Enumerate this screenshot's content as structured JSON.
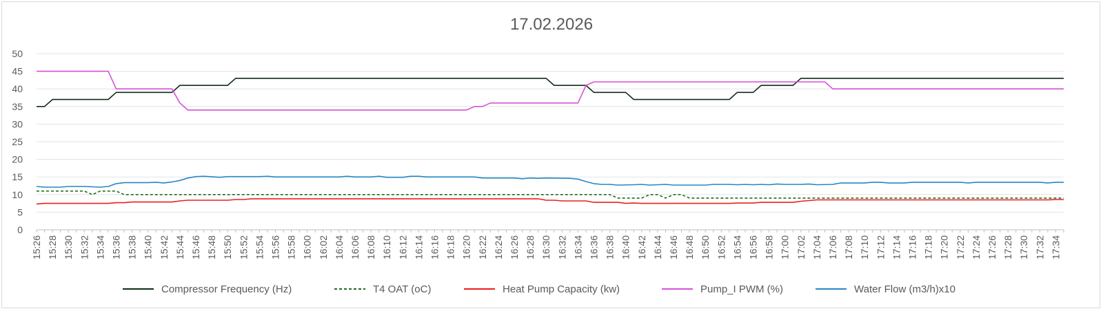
{
  "chart_data": {
    "type": "line",
    "title": "17.02.2026",
    "ylim": [
      0,
      50
    ],
    "yticks": [
      0,
      5,
      10,
      15,
      20,
      25,
      30,
      35,
      40,
      45,
      50
    ],
    "grid": true,
    "legend_position": "bottom",
    "x_start_minute": 926,
    "x_end_minute": 1055,
    "x_labels": [
      "15:26",
      "15:28",
      "15:30",
      "15:32",
      "15:34",
      "15:36",
      "15:38",
      "15:40",
      "15:42",
      "15:44",
      "15:46",
      "15:48",
      "15:50",
      "15:52",
      "15:54",
      "15:56",
      "15:58",
      "16:00",
      "16:02",
      "16:04",
      "16:06",
      "16:08",
      "16:10",
      "16:12",
      "16:14",
      "16:16",
      "16:18",
      "16:20",
      "16:22",
      "16:24",
      "16:26",
      "16:28",
      "16:30",
      "16:32",
      "16:34",
      "16:36",
      "16:38",
      "16:40",
      "16:42",
      "16:44",
      "16:46",
      "16:48",
      "16:50",
      "16:52",
      "16:54",
      "16:56",
      "16:58",
      "17:00",
      "17:02",
      "17:04",
      "17:06",
      "17:08",
      "17:10",
      "17:12",
      "17:14",
      "17:16",
      "17:18",
      "17:20",
      "17:22",
      "17:24",
      "17:26",
      "17:28",
      "17:30",
      "17:32",
      "17:34"
    ],
    "series": [
      {
        "name": "Compressor Frequency (Hz)",
        "color": "#0d2b14",
        "dash": "solid",
        "points": [
          [
            926,
            35
          ],
          [
            927,
            35
          ],
          [
            928,
            37
          ],
          [
            935,
            37
          ],
          [
            936,
            39
          ],
          [
            943,
            39
          ],
          [
            944,
            41
          ],
          [
            950,
            41
          ],
          [
            951,
            43
          ],
          [
            990,
            43
          ],
          [
            991,
            41
          ],
          [
            995,
            41
          ],
          [
            996,
            39
          ],
          [
            1000,
            39
          ],
          [
            1001,
            37
          ],
          [
            1013,
            37
          ],
          [
            1014,
            39
          ],
          [
            1016,
            39
          ],
          [
            1017,
            41
          ],
          [
            1021,
            41
          ],
          [
            1022,
            43
          ],
          [
            1055,
            43
          ]
        ]
      },
      {
        "name": "T4 OAT (oC)",
        "color": "#1e6b1e",
        "dash": "dashed",
        "points": [
          [
            926,
            11
          ],
          [
            932,
            11
          ],
          [
            933,
            10
          ],
          [
            934,
            11
          ],
          [
            936,
            11
          ],
          [
            937,
            10
          ],
          [
            998,
            10
          ],
          [
            999,
            9
          ],
          [
            1002,
            9
          ],
          [
            1003,
            10
          ],
          [
            1004,
            10
          ],
          [
            1005,
            9
          ],
          [
            1006,
            10
          ],
          [
            1007,
            10
          ],
          [
            1008,
            9
          ],
          [
            1055,
            9
          ]
        ]
      },
      {
        "name": "Heat Pump Capacity (kw)",
        "color": "#ee1c1c",
        "dash": "solid",
        "points": [
          [
            926,
            7.3
          ],
          [
            927,
            7.5
          ],
          [
            935,
            7.5
          ],
          [
            936,
            7.7
          ],
          [
            937,
            7.7
          ],
          [
            938,
            7.9
          ],
          [
            943,
            7.9
          ],
          [
            944,
            8.2
          ],
          [
            945,
            8.4
          ],
          [
            950,
            8.4
          ],
          [
            951,
            8.6
          ],
          [
            952,
            8.6
          ],
          [
            953,
            8.8
          ],
          [
            989,
            8.8
          ],
          [
            990,
            8.4
          ],
          [
            991,
            8.4
          ],
          [
            992,
            8.2
          ],
          [
            995,
            8.2
          ],
          [
            996,
            7.8
          ],
          [
            999,
            7.8
          ],
          [
            1000,
            7.5
          ],
          [
            1001,
            7.6
          ],
          [
            1002,
            7.5
          ],
          [
            1013,
            7.5
          ],
          [
            1014,
            7.6
          ],
          [
            1016,
            7.6
          ],
          [
            1017,
            7.8
          ],
          [
            1021,
            7.8
          ],
          [
            1022,
            8.1
          ],
          [
            1023,
            8.3
          ],
          [
            1024,
            8.5
          ],
          [
            1053,
            8.5
          ],
          [
            1054,
            8.6
          ],
          [
            1055,
            8.6
          ]
        ]
      },
      {
        "name": "Pump_I PWM (%)",
        "color": "#d74fd7",
        "dash": "solid",
        "points": [
          [
            926,
            45
          ],
          [
            935,
            45
          ],
          [
            936,
            40
          ],
          [
            943,
            40
          ],
          [
            944,
            36
          ],
          [
            945,
            34
          ],
          [
            980,
            34
          ],
          [
            981,
            35
          ],
          [
            982,
            35
          ],
          [
            983,
            36
          ],
          [
            994,
            36
          ],
          [
            995,
            41
          ],
          [
            996,
            42
          ],
          [
            1025,
            42
          ],
          [
            1026,
            40
          ],
          [
            1055,
            40
          ]
        ]
      },
      {
        "name": "Water Flow (m3/h)x10",
        "color": "#2586c6",
        "dash": "solid",
        "points": [
          [
            926,
            12.3
          ],
          [
            927,
            12.1
          ],
          [
            929,
            12.1
          ],
          [
            930,
            12.3
          ],
          [
            932,
            12.3
          ],
          [
            933,
            12.2
          ],
          [
            934,
            12.1
          ],
          [
            935,
            12.3
          ],
          [
            936,
            13.1
          ],
          [
            937,
            13.4
          ],
          [
            940,
            13.4
          ],
          [
            941,
            13.5
          ],
          [
            942,
            13.3
          ],
          [
            943,
            13.6
          ],
          [
            944,
            14.0
          ],
          [
            945,
            14.7
          ],
          [
            946,
            15.1
          ],
          [
            947,
            15.2
          ],
          [
            949,
            14.9
          ],
          [
            950,
            15.1
          ],
          [
            954,
            15.1
          ],
          [
            955,
            15.2
          ],
          [
            956,
            15.0
          ],
          [
            964,
            15.0
          ],
          [
            965,
            15.2
          ],
          [
            966,
            15.0
          ],
          [
            968,
            15.0
          ],
          [
            969,
            15.2
          ],
          [
            970,
            14.9
          ],
          [
            972,
            14.9
          ],
          [
            973,
            15.2
          ],
          [
            974,
            15.2
          ],
          [
            975,
            15.0
          ],
          [
            981,
            15.0
          ],
          [
            982,
            14.7
          ],
          [
            986,
            14.7
          ],
          [
            987,
            14.5
          ],
          [
            988,
            14.7
          ],
          [
            989,
            14.6
          ],
          [
            990,
            14.7
          ],
          [
            993,
            14.6
          ],
          [
            994,
            14.4
          ],
          [
            995,
            13.7
          ],
          [
            996,
            13.1
          ],
          [
            997,
            12.9
          ],
          [
            998,
            12.9
          ],
          [
            999,
            12.7
          ],
          [
            1001,
            12.8
          ],
          [
            1002,
            12.9
          ],
          [
            1003,
            12.7
          ],
          [
            1005,
            12.9
          ],
          [
            1006,
            12.7
          ],
          [
            1010,
            12.7
          ],
          [
            1011,
            12.9
          ],
          [
            1013,
            12.9
          ],
          [
            1014,
            12.8
          ],
          [
            1015,
            12.9
          ],
          [
            1016,
            12.8
          ],
          [
            1017,
            12.9
          ],
          [
            1018,
            12.8
          ],
          [
            1019,
            13.0
          ],
          [
            1020,
            12.9
          ],
          [
            1022,
            12.9
          ],
          [
            1023,
            13.0
          ],
          [
            1024,
            12.8
          ],
          [
            1026,
            12.9
          ],
          [
            1027,
            13.3
          ],
          [
            1030,
            13.3
          ],
          [
            1031,
            13.5
          ],
          [
            1032,
            13.5
          ],
          [
            1033,
            13.3
          ],
          [
            1035,
            13.3
          ],
          [
            1036,
            13.5
          ],
          [
            1042,
            13.5
          ],
          [
            1043,
            13.3
          ],
          [
            1044,
            13.5
          ],
          [
            1052,
            13.5
          ],
          [
            1053,
            13.3
          ],
          [
            1054,
            13.5
          ],
          [
            1055,
            13.5
          ]
        ]
      }
    ]
  }
}
